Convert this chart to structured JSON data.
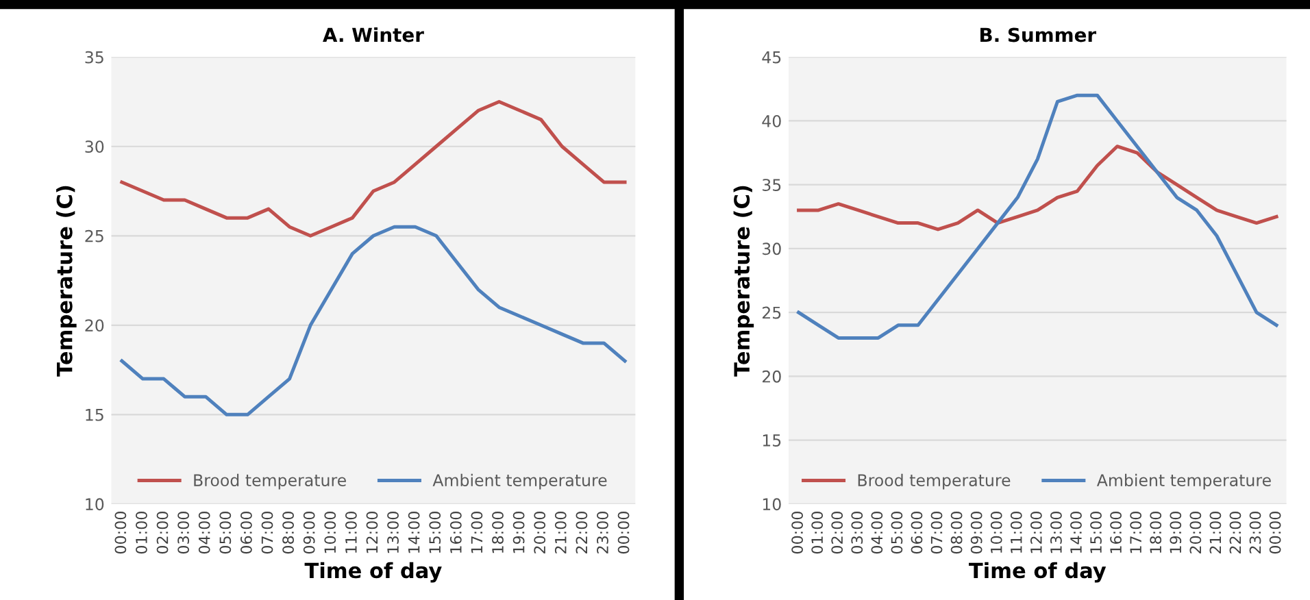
{
  "chart_data": [
    {
      "type": "line",
      "title": "A. Winter",
      "xlabel": "Time of day",
      "ylabel": "Temperature (C)",
      "categories": [
        "00:00",
        "01:00",
        "02:00",
        "03:00",
        "04:00",
        "05:00",
        "06:00",
        "07:00",
        "08:00",
        "09:00",
        "10:00",
        "11:00",
        "12:00",
        "13:00",
        "14:00",
        "15:00",
        "16:00",
        "17:00",
        "18:00",
        "19:00",
        "20:00",
        "21:00",
        "22:00",
        "23:00",
        "00:00"
      ],
      "series": [
        {
          "name": "Brood temperature",
          "color": "#c0504d",
          "values": [
            28,
            27.5,
            27,
            27,
            26.5,
            26,
            26,
            26.5,
            25.5,
            25,
            25.5,
            26,
            27.5,
            28,
            29,
            30,
            31,
            32,
            32.5,
            32,
            31.5,
            30,
            29,
            28,
            28
          ]
        },
        {
          "name": "Ambient temperature",
          "color": "#4f81bd",
          "values": [
            18,
            17,
            17,
            16,
            16,
            15,
            15,
            16,
            17,
            20,
            22,
            24,
            25,
            25.5,
            25.5,
            25,
            23.5,
            22,
            21,
            20.5,
            20,
            19.5,
            19,
            19,
            18
          ]
        }
      ],
      "ylim": [
        10,
        35
      ],
      "yticks": [
        10,
        15,
        20,
        25,
        30,
        35
      ],
      "grid": "y",
      "legend": "bottom",
      "marker": "none",
      "line_style": "solid"
    },
    {
      "type": "line",
      "title": "B. Summer",
      "xlabel": "Time of day",
      "ylabel": "Temperature (C)",
      "categories": [
        "00:00",
        "01:00",
        "02:00",
        "03:00",
        "04:00",
        "05:00",
        "06:00",
        "07:00",
        "08:00",
        "09:00",
        "10:00",
        "11:00",
        "12:00",
        "13:00",
        "14:00",
        "15:00",
        "16:00",
        "17:00",
        "18:00",
        "19:00",
        "20:00",
        "21:00",
        "22:00",
        "23:00",
        "00:00"
      ],
      "series": [
        {
          "name": "Brood temperature",
          "color": "#c0504d",
          "values": [
            33,
            33,
            33.5,
            33,
            32.5,
            32,
            32,
            31.5,
            32,
            33,
            32,
            32.5,
            33,
            34,
            34.5,
            36.5,
            38,
            37.5,
            36,
            35,
            34,
            33,
            32.5,
            32,
            32.5
          ]
        },
        {
          "name": "Ambient temperature",
          "color": "#4f81bd",
          "values": [
            25,
            24,
            23,
            23,
            23,
            24,
            24,
            26,
            28,
            30,
            32,
            34,
            37,
            41.5,
            42,
            42,
            40,
            38,
            36,
            34,
            33,
            31,
            28,
            25,
            24
          ]
        }
      ],
      "ylim": [
        10,
        45
      ],
      "yticks": [
        10,
        15,
        20,
        25,
        30,
        35,
        40,
        45
      ],
      "grid": "y",
      "legend": "bottom",
      "marker": "none",
      "line_style": "solid"
    }
  ]
}
